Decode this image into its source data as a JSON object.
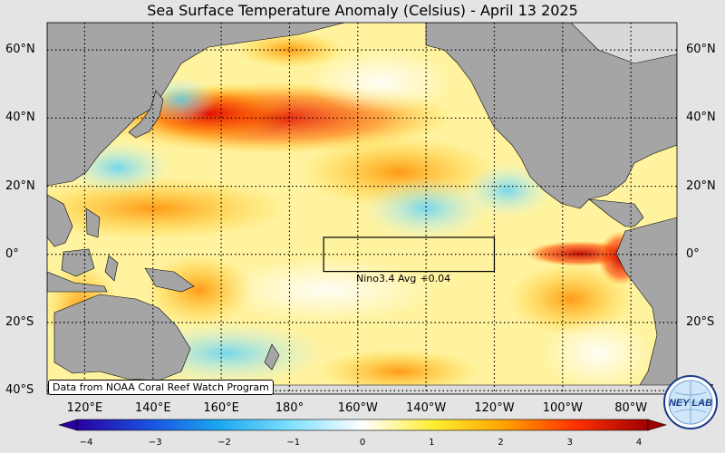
{
  "title": "Sea Surface Temperature Anomaly (Celsius) - April 13 2025",
  "lat_labels": [
    "60°N",
    "40°N",
    "20°N",
    "0°",
    "20°S",
    "40°S"
  ],
  "lon_labels": [
    "120°E",
    "140°E",
    "160°E",
    "180°",
    "160°W",
    "140°W",
    "120°W",
    "100°W",
    "80°W"
  ],
  "colorbar": {
    "ticks": [
      "−4",
      "−3",
      "−2",
      "−1",
      "0",
      "1",
      "2",
      "3",
      "4"
    ],
    "range": [
      -4,
      4
    ],
    "stops": [
      "#2a00a0",
      "#1a50e0",
      "#1aa8f0",
      "#80e0ff",
      "#ffffff",
      "#ffee30",
      "#ffa000",
      "#ff3000",
      "#a00000"
    ]
  },
  "nino_box": {
    "name": "Nino3.4 Avg",
    "value": "+0.04",
    "lat_range": [
      -5,
      5
    ],
    "lon_range": [
      -170,
      -120
    ]
  },
  "credit": "Data from NOAA Coral Reef Watch Program",
  "logo_text": "NEY LAB",
  "colors": {
    "land": "#a5a5a5",
    "background": "#e4e4e4",
    "grid": "#000000"
  }
}
